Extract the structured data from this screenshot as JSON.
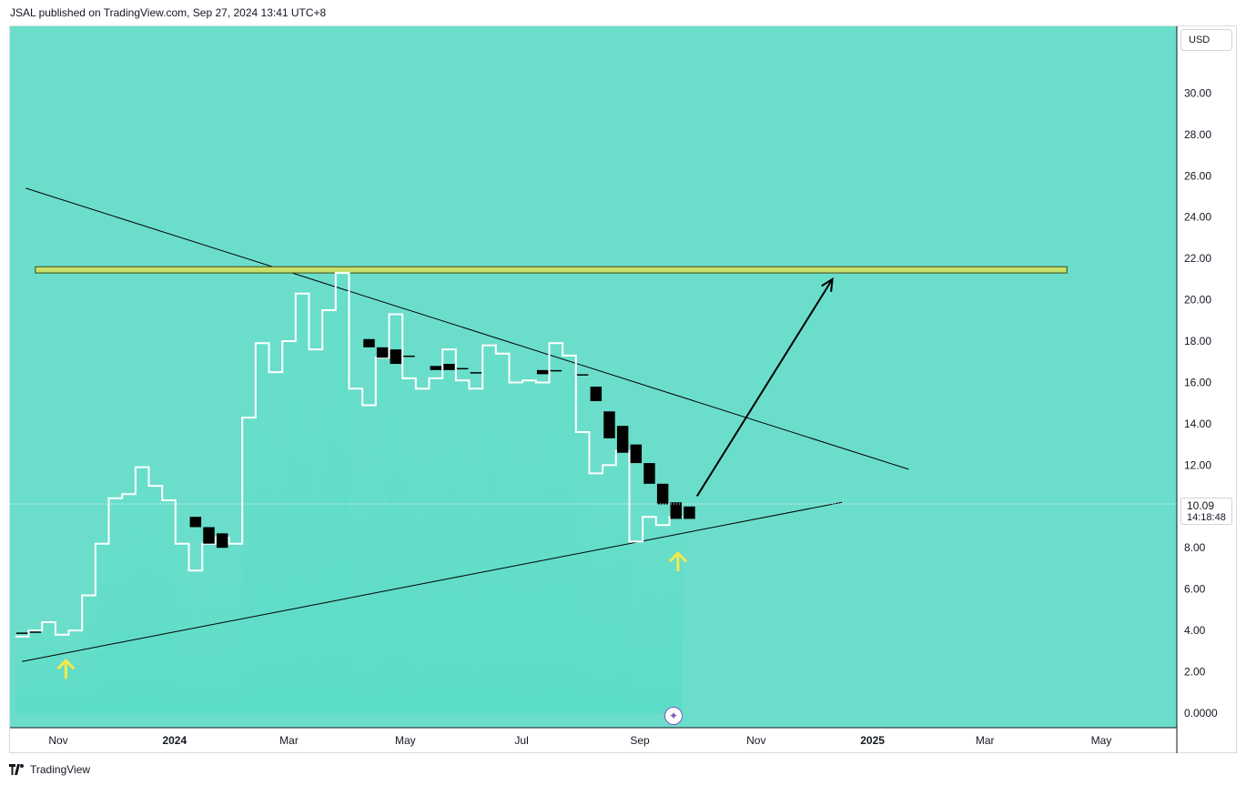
{
  "header": {
    "publisher_line": "JSAL published on TradingView.com, Sep 27, 2024 13:41 UTC+8"
  },
  "price_axis": {
    "currency": "USD",
    "last_price": "10.09",
    "countdown": "14:18:48",
    "tick_labels": [
      "30.00",
      "28.00",
      "26.00",
      "24.00",
      "22.00",
      "20.00",
      "18.00",
      "16.00",
      "14.00",
      "12.00",
      "8.00",
      "6.00",
      "4.00",
      "2.00",
      "0.0000"
    ]
  },
  "time_axis": {
    "labels": [
      "Nov",
      "2024",
      "Mar",
      "May",
      "Jul",
      "Sep",
      "Nov",
      "2025",
      "Mar",
      "May"
    ],
    "major": [
      "2024",
      "2025"
    ]
  },
  "footer": {
    "brand": "TradingView"
  },
  "colors": {
    "background": "#6bdecb",
    "step_line": "#ffffff",
    "candle": "#000000",
    "resistance_zone": "#c7e06a",
    "arrow": "#f5e94a",
    "trendline": "#000000"
  },
  "chart_data": {
    "type": "line",
    "ylim": [
      0,
      32
    ],
    "price_step_series": [
      {
        "x": "2023-10-13",
        "y": 3.7
      },
      {
        "x": "2023-10-20",
        "y": 4.0
      },
      {
        "x": "2023-10-27",
        "y": 4.4
      },
      {
        "x": "2023-11-03",
        "y": 3.8
      },
      {
        "x": "2023-11-10",
        "y": 4.0
      },
      {
        "x": "2023-11-17",
        "y": 5.7
      },
      {
        "x": "2023-11-24",
        "y": 8.2
      },
      {
        "x": "2023-12-01",
        "y": 10.4
      },
      {
        "x": "2023-12-08",
        "y": 10.6
      },
      {
        "x": "2023-12-15",
        "y": 11.9
      },
      {
        "x": "2023-12-22",
        "y": 11.0
      },
      {
        "x": "2023-12-29",
        "y": 10.3
      },
      {
        "x": "2024-01-05",
        "y": 8.2
      },
      {
        "x": "2024-01-12",
        "y": 6.9
      },
      {
        "x": "2024-01-19",
        "y": 8.2
      },
      {
        "x": "2024-01-26",
        "y": 8.5
      },
      {
        "x": "2024-02-02",
        "y": 8.2
      },
      {
        "x": "2024-02-09",
        "y": 14.3
      },
      {
        "x": "2024-02-16",
        "y": 17.9
      },
      {
        "x": "2024-02-23",
        "y": 16.5
      },
      {
        "x": "2024-03-01",
        "y": 18.0
      },
      {
        "x": "2024-03-08",
        "y": 20.3
      },
      {
        "x": "2024-03-15",
        "y": 17.6
      },
      {
        "x": "2024-03-22",
        "y": 19.5
      },
      {
        "x": "2024-03-29",
        "y": 21.3
      },
      {
        "x": "2024-04-05",
        "y": 15.7
      },
      {
        "x": "2024-04-12",
        "y": 14.9
      },
      {
        "x": "2024-04-19",
        "y": 17.2
      },
      {
        "x": "2024-04-26",
        "y": 19.3
      },
      {
        "x": "2024-05-03",
        "y": 16.2
      },
      {
        "x": "2024-05-10",
        "y": 15.7
      },
      {
        "x": "2024-05-17",
        "y": 16.2
      },
      {
        "x": "2024-05-24",
        "y": 17.6
      },
      {
        "x": "2024-05-31",
        "y": 16.1
      },
      {
        "x": "2024-06-07",
        "y": 15.7
      },
      {
        "x": "2024-06-14",
        "y": 17.8
      },
      {
        "x": "2024-06-21",
        "y": 17.4
      },
      {
        "x": "2024-06-28",
        "y": 16.0
      },
      {
        "x": "2024-07-05",
        "y": 16.1
      },
      {
        "x": "2024-07-12",
        "y": 16.0
      },
      {
        "x": "2024-07-19",
        "y": 17.9
      },
      {
        "x": "2024-07-26",
        "y": 17.3
      },
      {
        "x": "2024-08-02",
        "y": 13.6
      },
      {
        "x": "2024-08-09",
        "y": 11.6
      },
      {
        "x": "2024-08-16",
        "y": 12.0
      },
      {
        "x": "2024-08-23",
        "y": 12.7
      },
      {
        "x": "2024-08-30",
        "y": 8.3
      },
      {
        "x": "2024-09-06",
        "y": 9.5
      },
      {
        "x": "2024-09-13",
        "y": 9.1
      },
      {
        "x": "2024-09-20",
        "y": 9.5
      }
    ],
    "candles": [
      {
        "x": "2023-10-13",
        "open": 3.9,
        "close": 3.9
      },
      {
        "x": "2023-10-20",
        "open": 3.95,
        "close": 3.95
      },
      {
        "x": "2024-01-12",
        "open": 9.5,
        "close": 9.0
      },
      {
        "x": "2024-01-19",
        "open": 9.0,
        "close": 8.2
      },
      {
        "x": "2024-01-26",
        "open": 8.7,
        "close": 8.0
      },
      {
        "x": "2024-04-12",
        "open": 18.1,
        "close": 17.7
      },
      {
        "x": "2024-04-19",
        "open": 17.7,
        "close": 17.2
      },
      {
        "x": "2024-04-26",
        "open": 17.6,
        "close": 16.9
      },
      {
        "x": "2024-05-03",
        "open": 17.3,
        "close": 17.3
      },
      {
        "x": "2024-05-17",
        "open": 16.8,
        "close": 16.6
      },
      {
        "x": "2024-05-24",
        "open": 16.9,
        "close": 16.6
      },
      {
        "x": "2024-05-31",
        "open": 16.7,
        "close": 16.7
      },
      {
        "x": "2024-06-07",
        "open": 16.5,
        "close": 16.5
      },
      {
        "x": "2024-07-12",
        "open": 16.6,
        "close": 16.4
      },
      {
        "x": "2024-07-19",
        "open": 16.6,
        "close": 16.6
      },
      {
        "x": "2024-08-02",
        "open": 16.4,
        "close": 16.4
      },
      {
        "x": "2024-08-09",
        "open": 15.8,
        "close": 15.1
      },
      {
        "x": "2024-08-16",
        "open": 14.6,
        "close": 13.3
      },
      {
        "x": "2024-08-23",
        "open": 13.9,
        "close": 12.6
      },
      {
        "x": "2024-08-30",
        "open": 13.0,
        "close": 12.1
      },
      {
        "x": "2024-09-06",
        "open": 12.1,
        "close": 11.1
      },
      {
        "x": "2024-09-13",
        "open": 11.1,
        "close": 10.1
      },
      {
        "x": "2024-09-20",
        "open": 10.2,
        "close": 9.4
      },
      {
        "x": "2024-09-27",
        "open": 10.0,
        "close": 9.4
      }
    ],
    "annotations": {
      "resistance_zone": {
        "x_start": "2023-10-20",
        "x_end": "2025-04-13",
        "y_low": 21.3,
        "y_high": 21.6
      },
      "descending_trendline": {
        "x1": "2023-10-15",
        "y1": 25.4,
        "x2": "2025-01-20",
        "y2": 11.8
      },
      "ascending_trendline": {
        "x1": "2023-10-13",
        "y1": 2.5,
        "x2": "2024-12-16",
        "y2": 10.2
      },
      "projection_arrow": {
        "x1": "2024-10-01",
        "y1": 10.5,
        "x2": "2024-12-11",
        "y2": 21.0
      },
      "up_arrows": [
        {
          "x": "2023-11-05",
          "y": 2.1
        },
        {
          "x": "2024-09-21",
          "y": 7.3
        }
      ]
    }
  }
}
